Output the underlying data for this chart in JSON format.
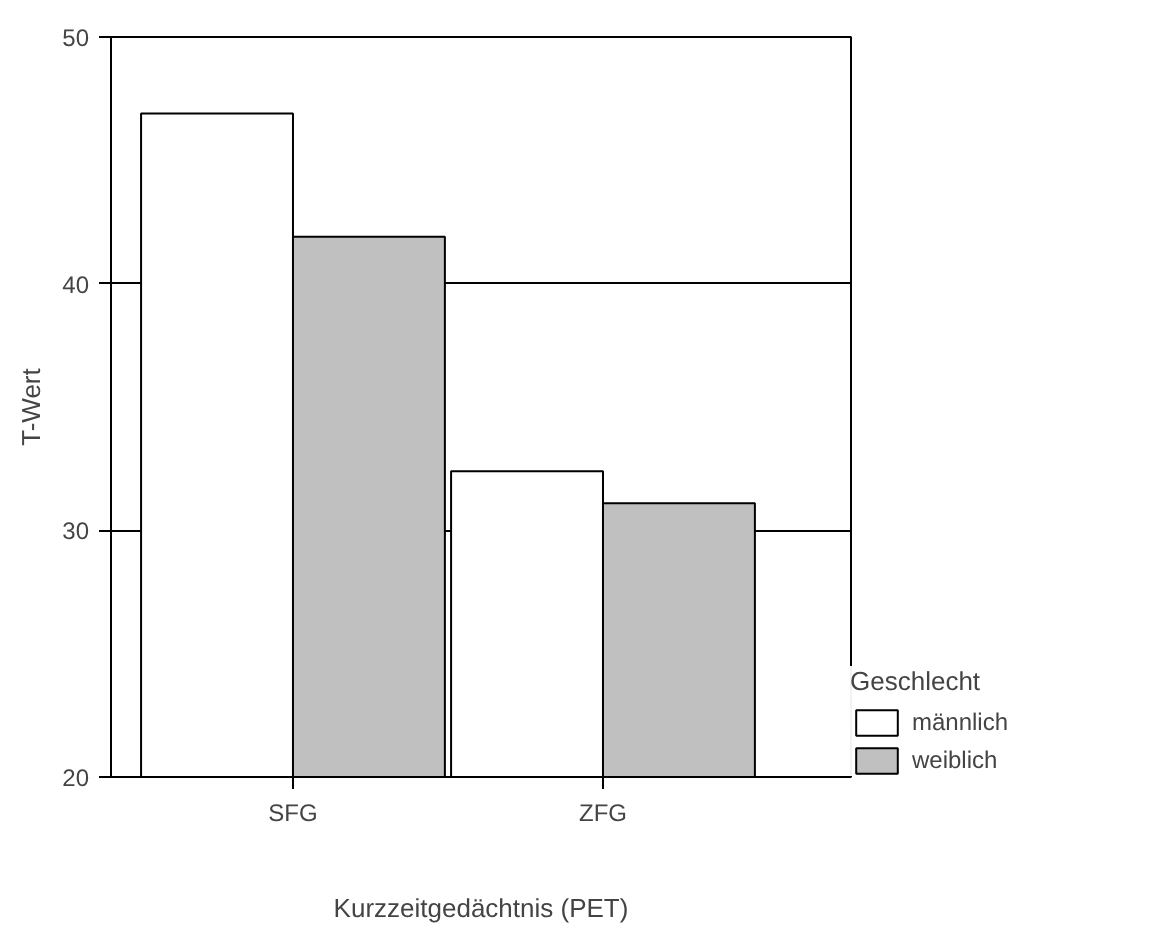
{
  "chart_data": {
    "type": "bar",
    "xlabel": "Kurzzeitgedächtnis (PET)",
    "ylabel": "T-Wert",
    "legend_title": "Geschlecht",
    "categories": [
      "SFG",
      "ZFG"
    ],
    "series": [
      {
        "name": "männlich",
        "color": "#ffffff",
        "values": [
          46.9,
          32.4
        ]
      },
      {
        "name": "weiblich",
        "color": "#c0c0c0",
        "values": [
          41.9,
          31.1
        ]
      }
    ],
    "ylim": [
      20,
      50
    ],
    "yticks": [
      20,
      30,
      40,
      50
    ],
    "grid": "y",
    "legend": "right"
  }
}
